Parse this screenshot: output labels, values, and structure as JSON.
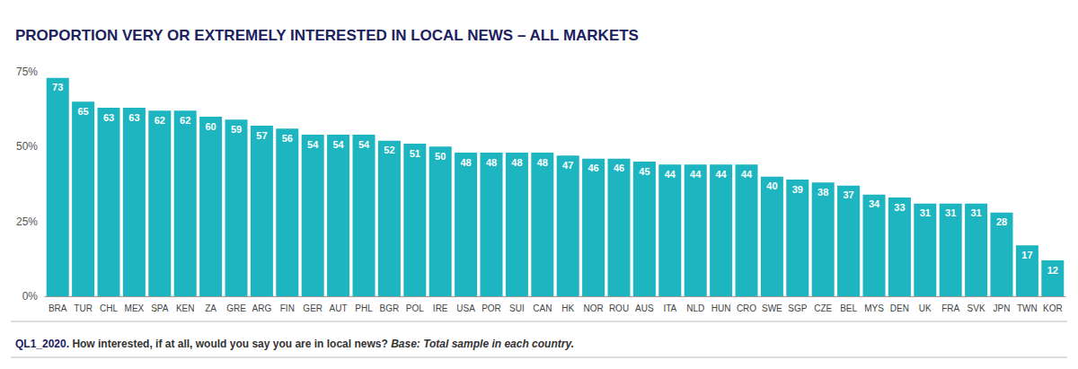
{
  "chart_data": {
    "type": "bar",
    "title": "PROPORTION VERY OR EXTREMELY INTERESTED IN LOCAL NEWS – ALL MARKETS",
    "categories": [
      "BRA",
      "TUR",
      "CHL",
      "MEX",
      "SPA",
      "KEN",
      "ZA",
      "GRE",
      "ARG",
      "FIN",
      "GER",
      "AUT",
      "PHL",
      "BGR",
      "POL",
      "IRE",
      "USA",
      "POR",
      "SUI",
      "CAN",
      "HK",
      "NOR",
      "ROU",
      "AUS",
      "ITA",
      "NLD",
      "HUN",
      "CRO",
      "SWE",
      "SGP",
      "CZE",
      "BEL",
      "MYS",
      "DEN",
      "UK",
      "FRA",
      "SVK",
      "JPN",
      "TWN",
      "KOR"
    ],
    "values": [
      73,
      65,
      63,
      63,
      62,
      62,
      60,
      59,
      57,
      56,
      54,
      54,
      54,
      52,
      51,
      50,
      48,
      48,
      48,
      48,
      47,
      46,
      46,
      45,
      44,
      44,
      44,
      44,
      40,
      39,
      38,
      37,
      34,
      33,
      31,
      31,
      31,
      28,
      17,
      12
    ],
    "color": "#1cb5c0",
    "ylim": [
      0,
      75
    ],
    "yticks": [
      {
        "value": 0,
        "label": "0%"
      },
      {
        "value": 25,
        "label": "25%"
      },
      {
        "value": 50,
        "label": "50%"
      },
      {
        "value": 75,
        "label": "75%"
      }
    ],
    "grid": false,
    "data_labels": true,
    "annotations": [
      "QL1_2020.",
      "How interested, if at all, would you say you are in local news?",
      "Base: Total sample in each country."
    ]
  }
}
